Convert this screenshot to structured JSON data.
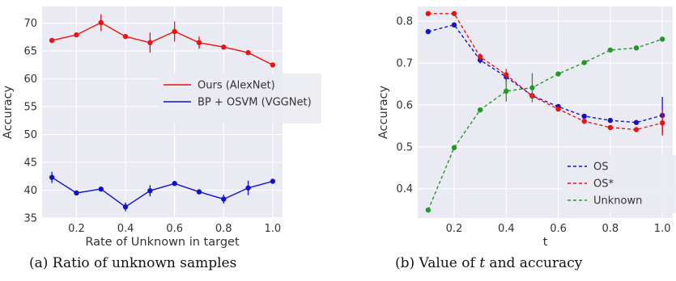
{
  "chart_data": [
    {
      "type": "line",
      "xlabel": "Rate of Unknown in target",
      "ylabel": "Accuracy",
      "xlim": [
        0.06,
        1.04
      ],
      "ylim": [
        35,
        73
      ],
      "xticks": [
        "0.2",
        "0.4",
        "0.6",
        "0.8",
        "1.0"
      ],
      "xtick_values": [
        0.2,
        0.4,
        0.6,
        0.8,
        1.0
      ],
      "yticks": [
        "35",
        "40",
        "45",
        "50",
        "55",
        "60",
        "65",
        "70"
      ],
      "ytick_values": [
        35,
        40,
        45,
        50,
        55,
        60,
        65,
        70
      ],
      "grid": true,
      "legend_position": "center-right",
      "x": [
        0.1,
        0.2,
        0.3,
        0.4,
        0.5,
        0.6,
        0.7,
        0.8,
        0.9,
        1.0
      ],
      "series": [
        {
          "name": "Ours (AlexNet)",
          "color": "#ee1111",
          "style": "solid",
          "values": [
            66.9,
            67.9,
            70.1,
            67.6,
            66.5,
            68.5,
            66.5,
            65.7,
            64.7,
            62.5
          ],
          "errors": [
            0.3,
            0.3,
            1.5,
            0.3,
            1.8,
            1.8,
            1.1,
            0.3,
            0.3,
            0.3
          ]
        },
        {
          "name": "BP + OSVM (VGGNet)",
          "color": "#1111cc",
          "style": "solid",
          "values": [
            42.3,
            39.5,
            40.2,
            37.0,
            39.9,
            41.2,
            39.7,
            38.4,
            40.4,
            41.6
          ],
          "errors": [
            1.0,
            0.3,
            0.3,
            0.8,
            1.0,
            0.3,
            0.3,
            0.8,
            1.3,
            0.3
          ]
        }
      ]
    },
    {
      "type": "line",
      "xlabel": "t",
      "ylabel": "Accuracy",
      "xlim": [
        0.06,
        1.04
      ],
      "ylim": [
        0.33,
        0.835
      ],
      "xticks": [
        "0.2",
        "0.4",
        "0.6",
        "0.8",
        "1.0"
      ],
      "xtick_values": [
        0.2,
        0.4,
        0.6,
        0.8,
        1.0
      ],
      "yticks": [
        "0.4",
        "0.5",
        "0.6",
        "0.7",
        "0.8"
      ],
      "ytick_values": [
        0.4,
        0.5,
        0.6,
        0.7,
        0.8
      ],
      "grid": true,
      "legend_position": "lower-right",
      "x": [
        0.1,
        0.2,
        0.3,
        0.4,
        0.5,
        0.6,
        0.7,
        0.8,
        0.9,
        1.0
      ],
      "series": [
        {
          "name": "OS",
          "color": "#1111cc",
          "style": "dashed",
          "values": [
            0.775,
            0.791,
            0.707,
            0.667,
            0.622,
            0.596,
            0.573,
            0.563,
            0.558,
            0.575
          ],
          "errors": [
            0.005,
            0.005,
            0.008,
            0.012,
            0.005,
            0.005,
            0.005,
            0.005,
            0.005,
            0.044
          ]
        },
        {
          "name": "OS*",
          "color": "#ee1111",
          "style": "dashed",
          "values": [
            0.818,
            0.818,
            0.715,
            0.672,
            0.621,
            0.59,
            0.561,
            0.546,
            0.541,
            0.557
          ],
          "errors": [
            0.005,
            0.005,
            0.008,
            0.014,
            0.005,
            0.005,
            0.005,
            0.005,
            0.005,
            0.03
          ]
        },
        {
          "name": "Unknown",
          "color": "#229922",
          "style": "dashed",
          "values": [
            0.349,
            0.498,
            0.588,
            0.633,
            0.641,
            0.674,
            0.701,
            0.731,
            0.736,
            0.757
          ],
          "errors": [
            0.005,
            0.005,
            0.005,
            0.025,
            0.035,
            0.005,
            0.005,
            0.005,
            0.005,
            0.005
          ]
        }
      ]
    }
  ],
  "captions": {
    "a_prefix": "(a) Ratio of unknown samples",
    "b_prefix": "(b) Value of ",
    "b_var": "t",
    "b_suffix": " and accuracy"
  }
}
